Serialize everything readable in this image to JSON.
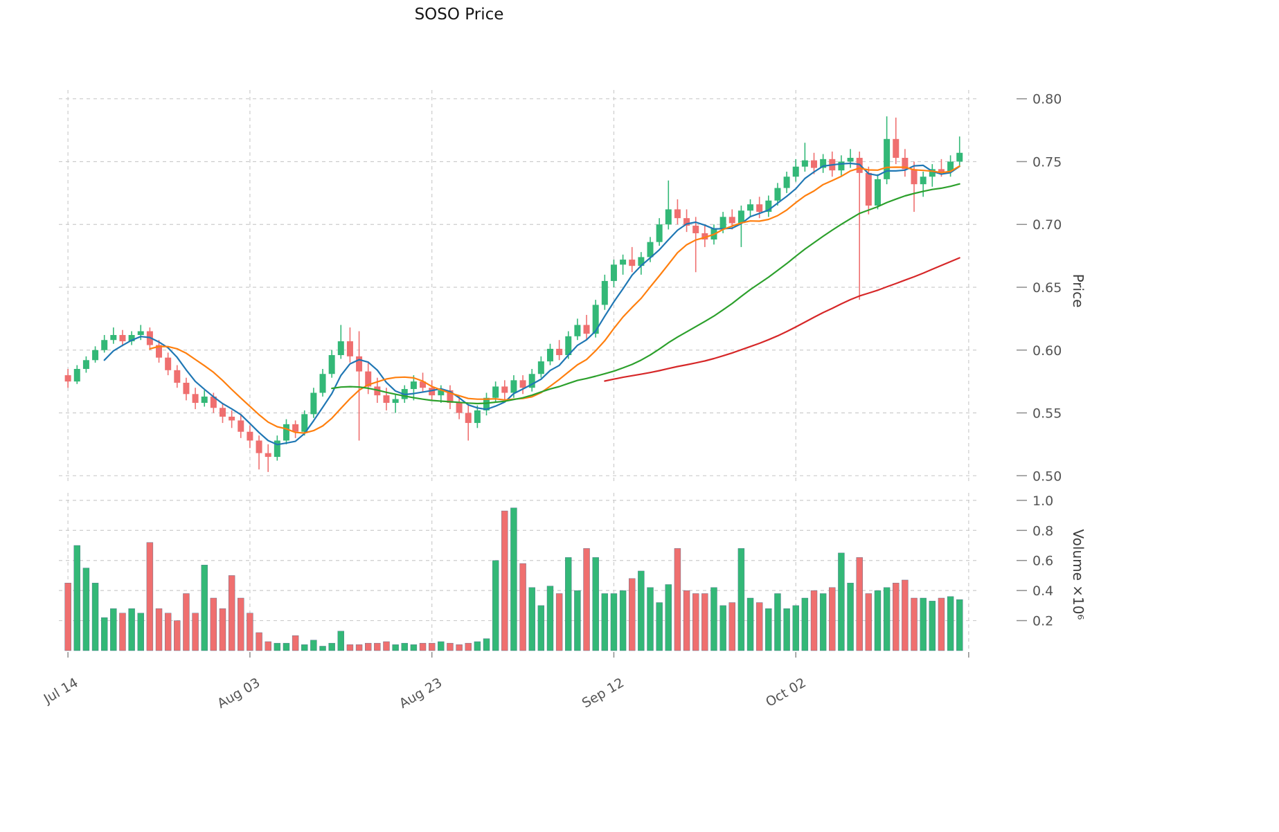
{
  "title": "SOSO Price",
  "colors": {
    "up": "#33b877",
    "down": "#ef6f6f",
    "grid": "#cccccc",
    "tick_mark": "#8c8c8c",
    "tick_text": "#545454",
    "ma5": "#1f77b4",
    "ma10": "#ff7f0e",
    "ma30": "#2ca02c",
    "ma60": "#d62728"
  },
  "chart_data": {
    "type": "candlestick+volume",
    "title": "SOSO Price",
    "ylabel": "Price",
    "ylabel2": "Volume ×10⁶",
    "legend": "none",
    "grid": "dashed",
    "axes": {
      "price_ticks": [
        0.5,
        0.55,
        0.6,
        0.65,
        0.7,
        0.75,
        0.8
      ],
      "volume_ticks": [
        0.2,
        0.4,
        0.6,
        0.8,
        1.0
      ],
      "price_range": [
        0.493,
        0.807
      ],
      "volume_range": [
        0,
        1.05
      ],
      "x_ticks": [
        {
          "index": 0,
          "label": "Jul 14"
        },
        {
          "index": 20,
          "label": "Aug 03"
        },
        {
          "index": 40,
          "label": "Aug 23"
        },
        {
          "index": 60,
          "label": "Sep 12"
        },
        {
          "index": 80,
          "label": "Oct 02"
        },
        {
          "index": 99,
          "label": ""
        }
      ]
    },
    "moving_averages": [
      {
        "name": "ma5-line",
        "window": 5,
        "color": "#1f77b4"
      },
      {
        "name": "ma10-line",
        "window": 10,
        "color": "#ff7f0e"
      },
      {
        "name": "ma30-line",
        "window": 30,
        "color": "#2ca02c"
      },
      {
        "name": "ma60-line",
        "window": 60,
        "color": "#d62728"
      }
    ],
    "dates": [
      "Jul 14",
      "Jul 15",
      "Jul 16",
      "Jul 17",
      "Jul 18",
      "Jul 19",
      "Jul 20",
      "Jul 21",
      "Jul 22",
      "Jul 23",
      "Jul 24",
      "Jul 25",
      "Jul 26",
      "Jul 27",
      "Jul 28",
      "Jul 29",
      "Jul 30",
      "Jul 31",
      "Aug 01",
      "Aug 02",
      "Aug 03",
      "Aug 04",
      "Aug 05",
      "Aug 06",
      "Aug 07",
      "Aug 08",
      "Aug 09",
      "Aug 10",
      "Aug 11",
      "Aug 12",
      "Aug 13",
      "Aug 14",
      "Aug 15",
      "Aug 16",
      "Aug 17",
      "Aug 18",
      "Aug 19",
      "Aug 20",
      "Aug 21",
      "Aug 22",
      "Aug 23",
      "Aug 24",
      "Aug 25",
      "Aug 26",
      "Aug 27",
      "Aug 28",
      "Aug 29",
      "Aug 30",
      "Aug 31",
      "Sep 01",
      "Sep 02",
      "Sep 03",
      "Sep 04",
      "Sep 05",
      "Sep 06",
      "Sep 07",
      "Sep 08",
      "Sep 09",
      "Sep 10",
      "Sep 11",
      "Sep 12",
      "Sep 13",
      "Sep 14",
      "Sep 15",
      "Sep 16",
      "Sep 17",
      "Sep 18",
      "Sep 19",
      "Sep 20",
      "Sep 21",
      "Sep 22",
      "Sep 23",
      "Sep 24",
      "Sep 25",
      "Sep 26",
      "Sep 27",
      "Sep 28",
      "Sep 29",
      "Sep 30",
      "Oct 01",
      "Oct 02",
      "Oct 03",
      "Oct 04",
      "Oct 05",
      "Oct 06",
      "Oct 07",
      "Oct 08",
      "Oct 09",
      "Oct 10",
      "Oct 11",
      "Oct 12",
      "Oct 13",
      "Oct 14",
      "Oct 15",
      "Oct 16",
      "Oct 17",
      "Oct 18",
      "Oct 19",
      "Oct 20"
    ],
    "ohlc": [
      [
        0.58,
        0.585,
        0.57,
        0.575
      ],
      [
        0.575,
        0.588,
        0.573,
        0.585
      ],
      [
        0.585,
        0.595,
        0.582,
        0.592
      ],
      [
        0.592,
        0.603,
        0.59,
        0.6
      ],
      [
        0.6,
        0.612,
        0.598,
        0.608
      ],
      [
        0.608,
        0.618,
        0.605,
        0.612
      ],
      [
        0.612,
        0.616,
        0.603,
        0.607
      ],
      [
        0.607,
        0.615,
        0.604,
        0.612
      ],
      [
        0.612,
        0.62,
        0.608,
        0.615
      ],
      [
        0.615,
        0.618,
        0.6,
        0.604
      ],
      [
        0.604,
        0.608,
        0.59,
        0.594
      ],
      [
        0.594,
        0.598,
        0.58,
        0.584
      ],
      [
        0.584,
        0.588,
        0.57,
        0.574
      ],
      [
        0.574,
        0.578,
        0.56,
        0.565
      ],
      [
        0.565,
        0.57,
        0.553,
        0.558
      ],
      [
        0.558,
        0.568,
        0.555,
        0.563
      ],
      [
        0.563,
        0.566,
        0.55,
        0.554
      ],
      [
        0.554,
        0.558,
        0.542,
        0.547
      ],
      [
        0.547,
        0.552,
        0.538,
        0.544
      ],
      [
        0.544,
        0.548,
        0.53,
        0.535
      ],
      [
        0.535,
        0.54,
        0.522,
        0.528
      ],
      [
        0.528,
        0.532,
        0.505,
        0.518
      ],
      [
        0.518,
        0.525,
        0.503,
        0.515
      ],
      [
        0.515,
        0.532,
        0.512,
        0.528
      ],
      [
        0.528,
        0.545,
        0.525,
        0.541
      ],
      [
        0.541,
        0.544,
        0.53,
        0.535
      ],
      [
        0.535,
        0.552,
        0.532,
        0.549
      ],
      [
        0.549,
        0.57,
        0.546,
        0.566
      ],
      [
        0.566,
        0.585,
        0.563,
        0.581
      ],
      [
        0.581,
        0.6,
        0.578,
        0.596
      ],
      [
        0.596,
        0.62,
        0.593,
        0.607
      ],
      [
        0.607,
        0.618,
        0.59,
        0.595
      ],
      [
        0.595,
        0.615,
        0.528,
        0.583
      ],
      [
        0.583,
        0.59,
        0.565,
        0.571
      ],
      [
        0.571,
        0.578,
        0.558,
        0.564
      ],
      [
        0.564,
        0.57,
        0.552,
        0.558
      ],
      [
        0.558,
        0.565,
        0.55,
        0.561
      ],
      [
        0.561,
        0.572,
        0.558,
        0.569
      ],
      [
        0.569,
        0.58,
        0.56,
        0.575
      ],
      [
        0.575,
        0.582,
        0.566,
        0.57
      ],
      [
        0.57,
        0.576,
        0.56,
        0.564
      ],
      [
        0.564,
        0.572,
        0.558,
        0.568
      ],
      [
        0.568,
        0.572,
        0.553,
        0.558
      ],
      [
        0.558,
        0.564,
        0.545,
        0.55
      ],
      [
        0.55,
        0.556,
        0.528,
        0.542
      ],
      [
        0.542,
        0.556,
        0.538,
        0.552
      ],
      [
        0.552,
        0.566,
        0.548,
        0.562
      ],
      [
        0.562,
        0.575,
        0.558,
        0.571
      ],
      [
        0.571,
        0.576,
        0.56,
        0.566
      ],
      [
        0.566,
        0.58,
        0.562,
        0.576
      ],
      [
        0.576,
        0.58,
        0.565,
        0.57
      ],
      [
        0.57,
        0.585,
        0.567,
        0.581
      ],
      [
        0.581,
        0.595,
        0.578,
        0.591
      ],
      [
        0.591,
        0.605,
        0.588,
        0.601
      ],
      [
        0.601,
        0.608,
        0.592,
        0.596
      ],
      [
        0.596,
        0.615,
        0.593,
        0.611
      ],
      [
        0.611,
        0.625,
        0.608,
        0.62
      ],
      [
        0.62,
        0.628,
        0.608,
        0.613
      ],
      [
        0.613,
        0.64,
        0.61,
        0.636
      ],
      [
        0.636,
        0.66,
        0.632,
        0.655
      ],
      [
        0.655,
        0.672,
        0.65,
        0.668
      ],
      [
        0.668,
        0.676,
        0.66,
        0.672
      ],
      [
        0.672,
        0.682,
        0.662,
        0.667
      ],
      [
        0.667,
        0.678,
        0.66,
        0.674
      ],
      [
        0.674,
        0.69,
        0.67,
        0.686
      ],
      [
        0.686,
        0.705,
        0.683,
        0.7
      ],
      [
        0.7,
        0.735,
        0.696,
        0.712
      ],
      [
        0.712,
        0.72,
        0.7,
        0.705
      ],
      [
        0.705,
        0.712,
        0.694,
        0.699
      ],
      [
        0.699,
        0.706,
        0.662,
        0.693
      ],
      [
        0.693,
        0.7,
        0.682,
        0.688
      ],
      [
        0.688,
        0.7,
        0.684,
        0.697
      ],
      [
        0.697,
        0.71,
        0.693,
        0.706
      ],
      [
        0.706,
        0.712,
        0.696,
        0.701
      ],
      [
        0.701,
        0.715,
        0.682,
        0.711
      ],
      [
        0.711,
        0.72,
        0.706,
        0.716
      ],
      [
        0.716,
        0.722,
        0.705,
        0.71
      ],
      [
        0.71,
        0.723,
        0.706,
        0.719
      ],
      [
        0.719,
        0.733,
        0.715,
        0.729
      ],
      [
        0.729,
        0.742,
        0.725,
        0.738
      ],
      [
        0.738,
        0.752,
        0.734,
        0.746
      ],
      [
        0.746,
        0.765,
        0.742,
        0.751
      ],
      [
        0.751,
        0.757,
        0.74,
        0.745
      ],
      [
        0.745,
        0.756,
        0.741,
        0.752
      ],
      [
        0.752,
        0.758,
        0.738,
        0.743
      ],
      [
        0.743,
        0.755,
        0.739,
        0.75
      ],
      [
        0.75,
        0.76,
        0.745,
        0.753
      ],
      [
        0.753,
        0.758,
        0.64,
        0.741
      ],
      [
        0.741,
        0.746,
        0.708,
        0.715
      ],
      [
        0.715,
        0.74,
        0.712,
        0.736
      ],
      [
        0.736,
        0.786,
        0.732,
        0.768
      ],
      [
        0.768,
        0.785,
        0.748,
        0.753
      ],
      [
        0.753,
        0.76,
        0.738,
        0.744
      ],
      [
        0.744,
        0.75,
        0.71,
        0.732
      ],
      [
        0.732,
        0.742,
        0.722,
        0.738
      ],
      [
        0.738,
        0.748,
        0.73,
        0.744
      ],
      [
        0.744,
        0.752,
        0.738,
        0.742
      ],
      [
        0.742,
        0.755,
        0.738,
        0.75
      ],
      [
        0.75,
        0.77,
        0.746,
        0.757
      ]
    ],
    "volume": [
      0.45,
      0.7,
      0.55,
      0.45,
      0.22,
      0.28,
      0.25,
      0.28,
      0.25,
      0.72,
      0.28,
      0.25,
      0.2,
      0.38,
      0.25,
      0.57,
      0.35,
      0.28,
      0.5,
      0.35,
      0.25,
      0.12,
      0.06,
      0.05,
      0.05,
      0.1,
      0.04,
      0.07,
      0.03,
      0.05,
      0.13,
      0.04,
      0.04,
      0.05,
      0.05,
      0.06,
      0.04,
      0.05,
      0.04,
      0.05,
      0.05,
      0.06,
      0.05,
      0.04,
      0.05,
      0.06,
      0.08,
      0.6,
      0.93,
      0.95,
      0.58,
      0.42,
      0.3,
      0.43,
      0.38,
      0.62,
      0.4,
      0.68,
      0.62,
      0.38,
      0.38,
      0.4,
      0.48,
      0.53,
      0.42,
      0.32,
      0.44,
      0.68,
      0.4,
      0.38,
      0.38,
      0.42,
      0.3,
      0.32,
      0.68,
      0.35,
      0.32,
      0.28,
      0.38,
      0.28,
      0.3,
      0.35,
      0.4,
      0.38,
      0.42,
      0.65,
      0.45,
      0.62,
      0.38,
      0.4,
      0.42,
      0.45,
      0.47,
      0.35,
      0.35,
      0.33,
      0.35,
      0.36,
      0.34
    ]
  }
}
